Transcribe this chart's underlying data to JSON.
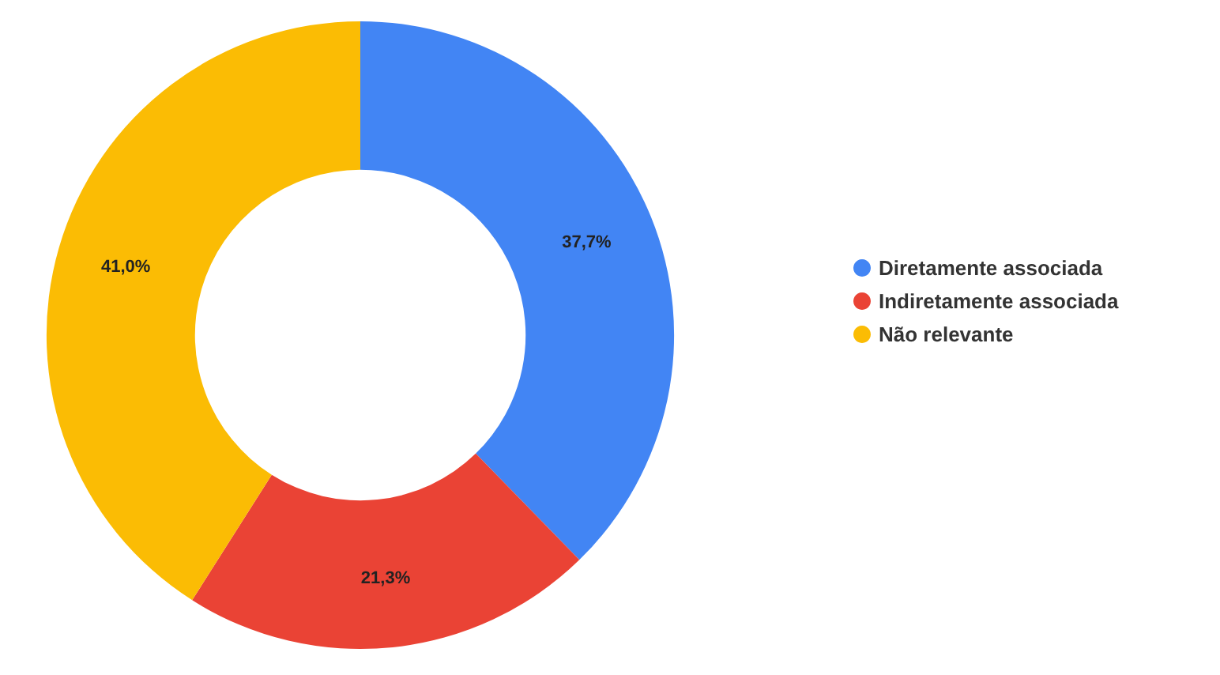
{
  "chart_data": {
    "type": "donut",
    "categories": [
      "Diretamente associada",
      "Indiretamente associada",
      "Não relevante"
    ],
    "values": [
      37.7,
      21.3,
      41.0
    ],
    "colors": [
      "#4285f4",
      "#ea4335",
      "#fbbc04"
    ],
    "value_labels": [
      "37,7%",
      "21,3%",
      "41,0%"
    ],
    "legend": "right"
  }
}
